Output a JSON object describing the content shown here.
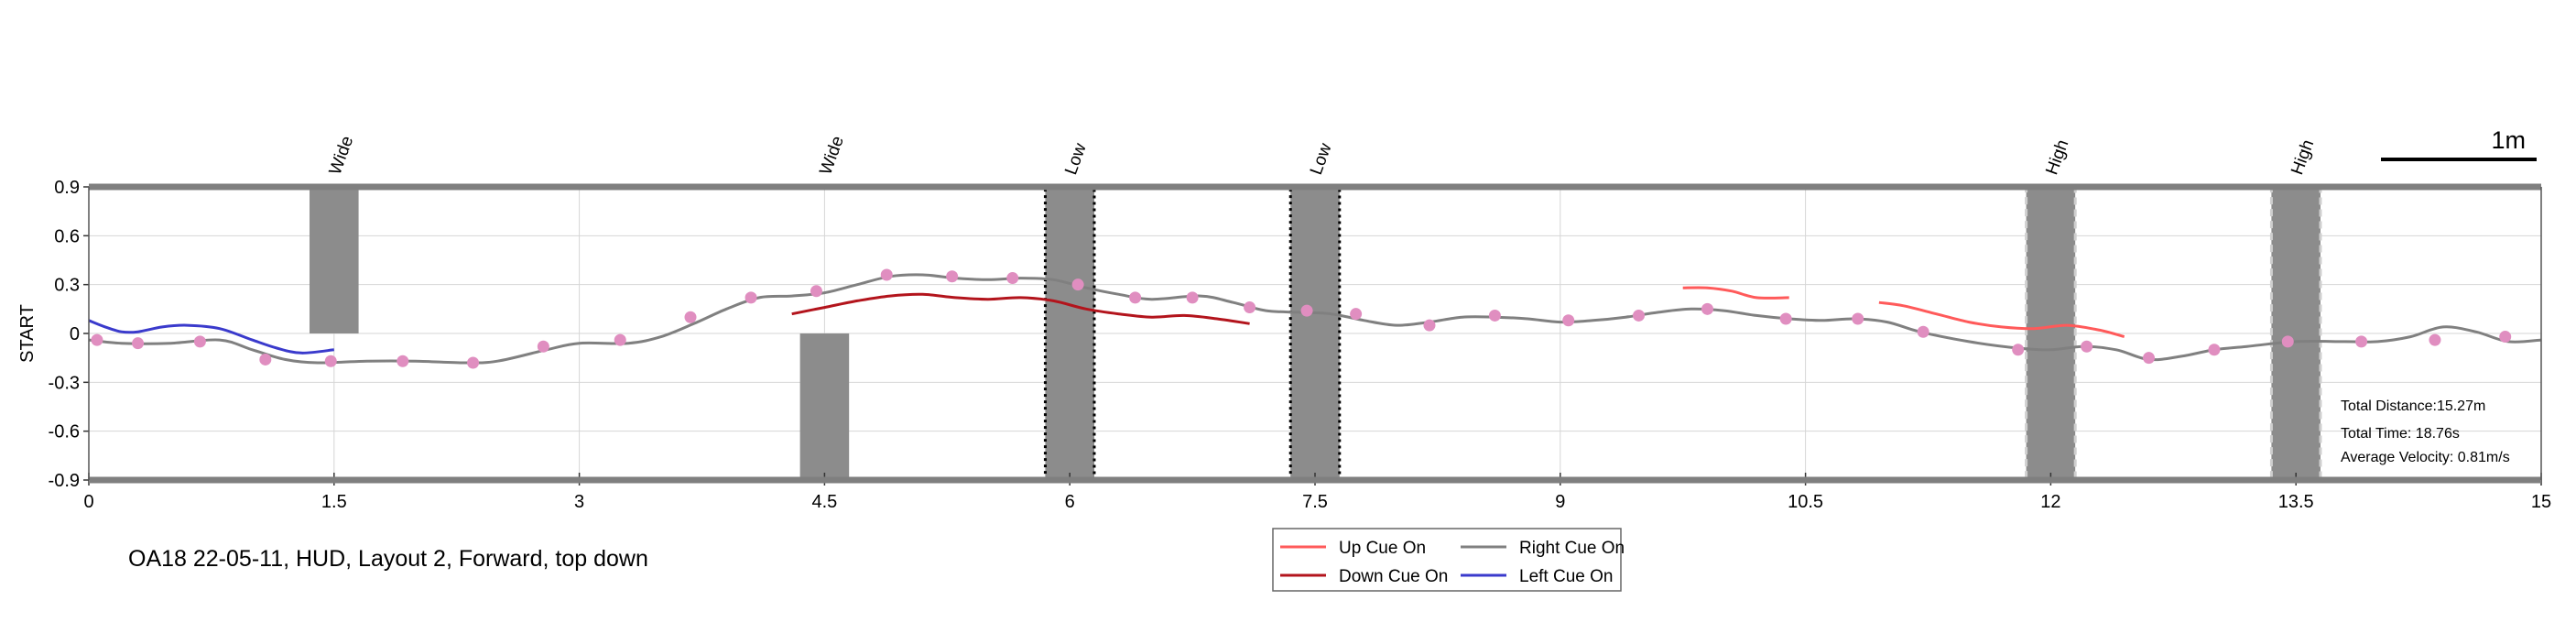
{
  "caption": "OA18 22-05-11, HUD, Layout 2, Forward, top down",
  "scale_label": "1m",
  "info": {
    "total_distance": "Total Distance:15.27m",
    "total_time": "Total Time: 18.76s",
    "average_velocity": "Average Velocity: 0.81m/s"
  },
  "chart_data": {
    "type": "line",
    "title": "",
    "xlabel": "",
    "ylabel": "START",
    "xlim": [
      0,
      15
    ],
    "ylim": [
      -0.9,
      0.9
    ],
    "xticks": [
      0,
      1.5,
      3,
      4.5,
      6,
      7.5,
      9,
      10.5,
      12,
      13.5,
      15
    ],
    "xtick_labels": [
      "0",
      "1.5",
      "3",
      "4.5",
      "6",
      "7.5",
      "9",
      "10.5",
      "12",
      "13.5",
      "15"
    ],
    "yticks": [
      0.9,
      0.6,
      0.3,
      0,
      -0.3,
      -0.6,
      -0.9
    ],
    "ytick_labels": [
      "0.9",
      "0.6",
      "0.3",
      "0",
      "-0.3",
      "-0.6",
      "-0.9"
    ],
    "grid": true,
    "legend": {
      "placement": "bottom-center",
      "entries": [
        {
          "label": "Up Cue On",
          "color": "#ff5a5a"
        },
        {
          "label": "Right Cue On",
          "color": "#808080"
        },
        {
          "label": "Down Cue On",
          "color": "#b3141c"
        },
        {
          "label": "Left Cue On",
          "color": "#3a3acc"
        }
      ]
    },
    "obstacles": [
      {
        "label": "Wide",
        "x_center": 1.5,
        "width": 0.3,
        "y_range": [
          0,
          0.9
        ],
        "style": "solid"
      },
      {
        "label": "Wide",
        "x_center": 4.5,
        "width": 0.3,
        "y_range": [
          -0.9,
          0
        ],
        "style": "solid"
      },
      {
        "label": "Low",
        "x_center": 6.0,
        "width": 0.3,
        "y_range": [
          -0.9,
          0.9
        ],
        "style": "dotted"
      },
      {
        "label": "Low",
        "x_center": 7.5,
        "width": 0.3,
        "y_range": [
          -0.9,
          0.9
        ],
        "style": "dotted"
      },
      {
        "label": "High",
        "x_center": 12.0,
        "width": 0.3,
        "y_range": [
          -0.9,
          0.9
        ],
        "style": "dashed"
      },
      {
        "label": "High",
        "x_center": 13.5,
        "width": 0.3,
        "y_range": [
          -0.9,
          0.9
        ],
        "style": "dashed"
      }
    ],
    "series": [
      {
        "name": "Right Cue On",
        "color": "#808080",
        "x": [
          0,
          0.2,
          0.5,
          0.8,
          1.0,
          1.2,
          1.4,
          1.7,
          2.0,
          2.3,
          2.5,
          2.8,
          3.0,
          3.3,
          3.5,
          3.7,
          3.9,
          4.1,
          4.3,
          4.5,
          4.7,
          4.9,
          5.1,
          5.3,
          5.5,
          5.7,
          5.9,
          6.1,
          6.3,
          6.5,
          6.8,
          7.0,
          7.2,
          7.4,
          7.6,
          7.8,
          8.0,
          8.2,
          8.4,
          8.6,
          8.8,
          9.0,
          9.2,
          9.4,
          9.6,
          9.8,
          10.0,
          10.2,
          10.4,
          10.6,
          10.8,
          11.0,
          11.2,
          11.5,
          11.8,
          12.0,
          12.2,
          12.4,
          12.6,
          12.8,
          13.0,
          13.2,
          13.5,
          13.8,
          14.0,
          14.2,
          14.4,
          14.6,
          14.8,
          15.0
        ],
        "y": [
          -0.04,
          -0.06,
          -0.06,
          -0.04,
          -0.1,
          -0.16,
          -0.18,
          -0.17,
          -0.17,
          -0.18,
          -0.17,
          -0.1,
          -0.06,
          -0.06,
          -0.02,
          0.06,
          0.15,
          0.22,
          0.23,
          0.25,
          0.3,
          0.35,
          0.36,
          0.34,
          0.33,
          0.34,
          0.33,
          0.28,
          0.24,
          0.21,
          0.23,
          0.19,
          0.14,
          0.13,
          0.12,
          0.08,
          0.05,
          0.07,
          0.1,
          0.1,
          0.09,
          0.07,
          0.08,
          0.1,
          0.13,
          0.15,
          0.14,
          0.11,
          0.09,
          0.08,
          0.09,
          0.07,
          0.01,
          -0.05,
          -0.09,
          -0.1,
          -0.08,
          -0.1,
          -0.16,
          -0.14,
          -0.1,
          -0.08,
          -0.05,
          -0.05,
          -0.05,
          -0.02,
          0.04,
          0.01,
          -0.05,
          -0.04
        ]
      },
      {
        "name": "Left Cue On",
        "color": "#3a3acc",
        "x": [
          0,
          0.1,
          0.2,
          0.3,
          0.45,
          0.6,
          0.8,
          1.0,
          1.15,
          1.3,
          1.5
        ],
        "y": [
          0.08,
          0.04,
          0.01,
          0.01,
          0.04,
          0.05,
          0.03,
          -0.04,
          -0.09,
          -0.12,
          -0.1
        ]
      },
      {
        "name": "Down Cue On",
        "color": "#b3141c",
        "x": [
          4.3,
          4.5,
          4.7,
          4.9,
          5.1,
          5.3,
          5.5,
          5.7,
          5.9,
          6.1,
          6.3,
          6.5,
          6.7,
          6.9,
          7.1
        ],
        "y": [
          0.12,
          0.16,
          0.2,
          0.23,
          0.24,
          0.22,
          0.21,
          0.22,
          0.2,
          0.15,
          0.12,
          0.1,
          0.11,
          0.09,
          0.06
        ]
      },
      {
        "name": "Up Cue On",
        "color": "#ff5a5a",
        "segments": [
          {
            "x": [
              9.75,
              9.9,
              10.05,
              10.2,
              10.4
            ],
            "y": [
              0.28,
              0.28,
              0.26,
              0.22,
              0.22
            ]
          },
          {
            "x": [
              10.95,
              11.1,
              11.3,
              11.5,
              11.7,
              11.9,
              12.1,
              12.3,
              12.45
            ],
            "y": [
              0.19,
              0.17,
              0.12,
              0.07,
              0.04,
              0.03,
              0.05,
              0.02,
              -0.02
            ]
          }
        ]
      }
    ],
    "markers": {
      "color": "#e08ec0",
      "x": [
        0.05,
        0.3,
        0.68,
        1.08,
        1.48,
        1.92,
        2.35,
        2.78,
        3.25,
        3.68,
        4.05,
        4.45,
        4.88,
        5.28,
        5.65,
        6.05,
        6.4,
        6.75,
        7.1,
        7.45,
        7.75,
        8.2,
        8.6,
        9.05,
        9.48,
        9.9,
        10.38,
        10.82,
        11.22,
        11.8,
        12.22,
        12.6,
        13.0,
        13.45,
        13.9,
        14.35,
        14.78
      ],
      "y": [
        -0.04,
        -0.06,
        -0.05,
        -0.16,
        -0.17,
        -0.17,
        -0.18,
        -0.08,
        -0.04,
        0.1,
        0.22,
        0.26,
        0.36,
        0.35,
        0.34,
        0.3,
        0.22,
        0.22,
        0.16,
        0.14,
        0.12,
        0.05,
        0.11,
        0.08,
        0.11,
        0.15,
        0.09,
        0.09,
        0.01,
        -0.1,
        -0.08,
        -0.15,
        -0.1,
        -0.05,
        -0.05,
        -0.04,
        -0.02
      ]
    }
  }
}
